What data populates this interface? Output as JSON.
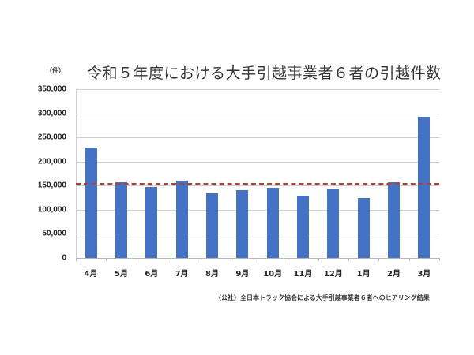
{
  "chart_data": {
    "type": "bar",
    "title": "令和５年度における大手引越事業者６者の引越件数",
    "unit_label": "（件）",
    "xlabel": "",
    "ylabel": "（件）",
    "ylim": [
      0,
      350000
    ],
    "yticks": [
      "350,000",
      "300,000",
      "250,000",
      "200,000",
      "150,000",
      "100,000",
      "50,000",
      "0"
    ],
    "ytick_values": [
      350000,
      300000,
      250000,
      200000,
      150000,
      100000,
      50000,
      0
    ],
    "grid": true,
    "legend": null,
    "categories": [
      "4月",
      "5月",
      "6月",
      "7月",
      "8月",
      "9月",
      "10月",
      "11月",
      "12月",
      "1月",
      "2月",
      "3月"
    ],
    "values": [
      229000,
      157000,
      148000,
      160000,
      134000,
      141000,
      146000,
      130000,
      142000,
      124000,
      157000,
      293000
    ],
    "bar_color": "#4472c4",
    "reference_line": {
      "style": "dashed",
      "color": "#c0392b",
      "value": 154000,
      "meaning": "monthly average (approx.)"
    },
    "source_note": "（公社）全日本トラック協会による大手引越事業者６者へのヒアリング結果"
  }
}
